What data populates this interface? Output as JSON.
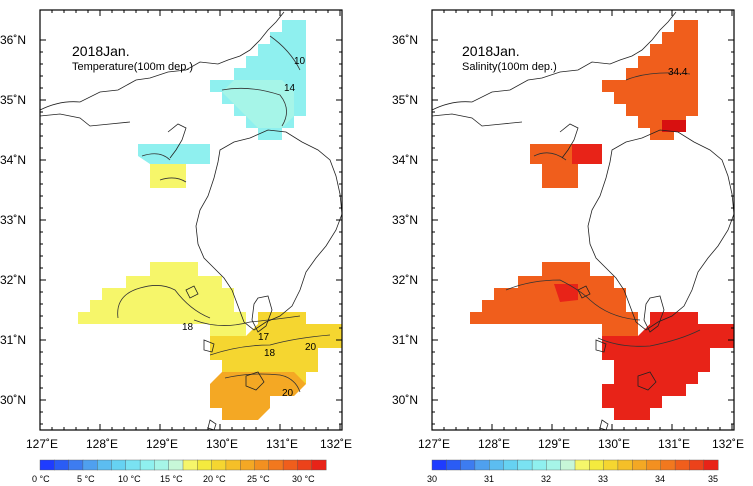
{
  "panels": [
    {
      "id": "temperature",
      "title": "2018Jan.",
      "subtitle": "Temperature(100m dep.)",
      "contour_labels": [
        "10",
        "14",
        "18",
        "18",
        "17",
        "20",
        "20"
      ],
      "colorbar": {
        "ticks": [
          "0 °C",
          "5 °C",
          "10 °C",
          "15 °C",
          "20 °C",
          "25 °C",
          "30 °C"
        ],
        "colors": [
          "#1e3cff",
          "#2a5cf5",
          "#3d7cf0",
          "#4fa0ef",
          "#5cbdf0",
          "#66d2f2",
          "#7ae2f2",
          "#8ff0ef",
          "#a6f5e8",
          "#c7f7d8",
          "#f6f66a",
          "#f4ea3e",
          "#f5d630",
          "#f5bf28",
          "#f4a824",
          "#f39020",
          "#f2781e",
          "#f05e1c",
          "#ec421a",
          "#e82318"
        ]
      }
    },
    {
      "id": "salinity",
      "title": "2018Jan.",
      "subtitle": "Salinity(100m dep.)",
      "contour_labels": [
        "34.4"
      ],
      "colorbar": {
        "ticks": [
          "30",
          "31",
          "32",
          "33",
          "34",
          "35"
        ],
        "colors": [
          "#1e3cff",
          "#2a5cf5",
          "#3d7cf0",
          "#4fa0ef",
          "#5cbdf0",
          "#66d2f2",
          "#7ae2f2",
          "#8ff0ef",
          "#a6f5e8",
          "#c7f7d8",
          "#f6f66a",
          "#f4ea3e",
          "#f5d630",
          "#f5bf28",
          "#f4a824",
          "#f39020",
          "#f2781e",
          "#f05e1c",
          "#ec421a",
          "#e82318"
        ]
      }
    }
  ],
  "axes": {
    "lat_labels": [
      "36˚N",
      "35˚N",
      "34˚N",
      "33˚N",
      "32˚N",
      "31˚N",
      "30˚N"
    ],
    "lon_labels": [
      "127˚E",
      "128˚E",
      "129˚E",
      "130˚E",
      "131˚E",
      "132˚E"
    ],
    "lat_values": [
      36,
      35,
      34,
      33,
      32,
      31,
      30
    ],
    "lon_values": [
      127,
      128,
      129,
      130,
      131,
      132
    ]
  },
  "colors": {
    "land_outline": "#222222",
    "temp_cold": "#8ff0ef",
    "temp_cool": "#a6f5e8",
    "temp_mid": "#f6f66a",
    "temp_warm": "#f5d630",
    "temp_hot": "#f4a824",
    "sal_main": "#f05e1c",
    "sal_high": "#e82318",
    "sal_highest": "#d81010"
  }
}
